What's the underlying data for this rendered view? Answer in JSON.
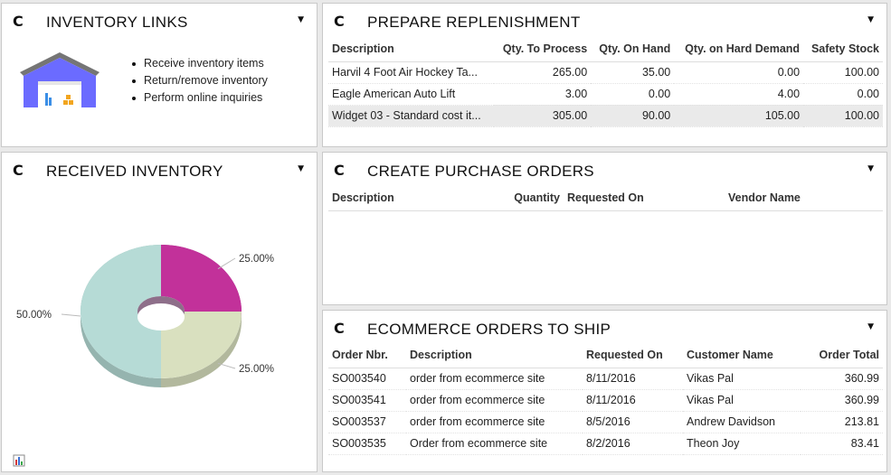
{
  "links": {
    "title": "INVENTORY LINKS",
    "items": [
      "Receive inventory items",
      "Return/remove inventory",
      "Perform online inquiries"
    ]
  },
  "received": {
    "title": "RECEIVED INVENTORY"
  },
  "chart_data": {
    "type": "pie",
    "categories": [
      "",
      "",
      ""
    ],
    "values": [
      25,
      25,
      50
    ],
    "labels": [
      "25.00%",
      "25.00%",
      "50.00%"
    ],
    "colors": [
      "#c2319a",
      "#d9e0bf",
      "#b6dbd6"
    ],
    "donut": true,
    "three_d": true
  },
  "replenishment": {
    "title": "PREPARE REPLENISHMENT",
    "columns": [
      "Description",
      "Qty. To Process",
      "Qty. On Hand",
      "Qty. on Hard Demand",
      "Safety Stock"
    ],
    "rows": [
      [
        "Harvil 4 Foot Air Hockey Ta...",
        "265.00",
        "35.00",
        "0.00",
        "100.00"
      ],
      [
        "Eagle American Auto Lift",
        "3.00",
        "0.00",
        "4.00",
        "0.00"
      ],
      [
        "Widget 03 - Standard cost it...",
        "305.00",
        "90.00",
        "105.00",
        "100.00"
      ]
    ]
  },
  "purchase": {
    "title": "CREATE PURCHASE ORDERS",
    "columns": [
      "Description",
      "Quantity",
      "Requested On",
      "Vendor Name"
    ]
  },
  "ecommerce": {
    "title": "ECOMMERCE ORDERS TO SHIP",
    "columns": [
      "Order Nbr.",
      "Description",
      "Requested On",
      "Customer Name",
      "Order Total"
    ],
    "rows": [
      [
        "SO003540",
        "order from ecommerce site",
        "8/11/2016",
        "Vikas Pal",
        "360.99"
      ],
      [
        "SO003541",
        "order from ecommerce site",
        "8/11/2016",
        "Vikas Pal",
        "360.99"
      ],
      [
        "SO003537",
        "order from ecommerce site",
        "8/5/2016",
        "Andrew Davidson",
        "213.81"
      ],
      [
        "SO003535",
        "Order from ecommerce site",
        "8/2/2016",
        "Theon Joy",
        "83.41"
      ]
    ]
  },
  "icons": {
    "refresh": "↻",
    "caret": "▼"
  }
}
